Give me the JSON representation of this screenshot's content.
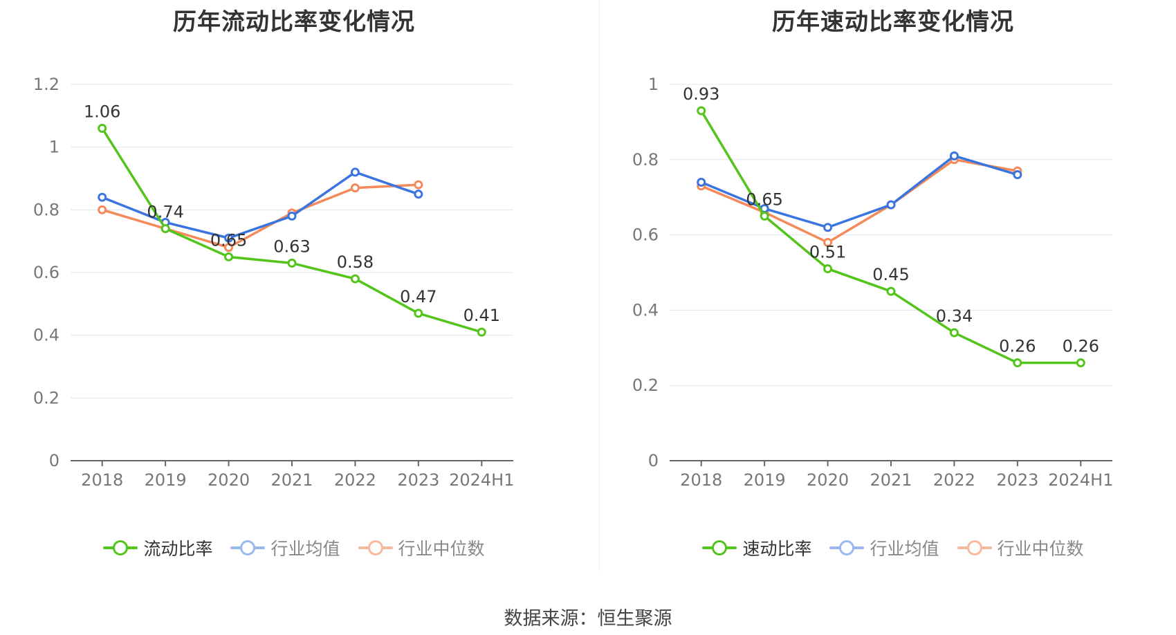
{
  "source_label": "数据来源：恒生聚源",
  "chart_data": [
    {
      "type": "line",
      "title": "历年流动比率变化情况",
      "categories": [
        "2018",
        "2019",
        "2020",
        "2021",
        "2022",
        "2023",
        "2024H1"
      ],
      "ylim": [
        0,
        1.2
      ],
      "yticks": [
        0,
        0.2,
        0.4,
        0.6,
        0.8,
        1,
        1.2
      ],
      "grid": true,
      "legend_position": "bottom",
      "series": [
        {
          "name": "流动比率",
          "color": "#52c41a",
          "values": [
            1.06,
            0.74,
            0.65,
            0.63,
            0.58,
            0.47,
            0.41
          ],
          "labels": [
            "1.06",
            "0.74",
            "0.65",
            "0.63",
            "0.58",
            "0.47",
            "0.41"
          ]
        },
        {
          "name": "行业均值",
          "color": "#3a74de",
          "values": [
            0.84,
            0.76,
            0.71,
            0.78,
            0.92,
            0.85,
            null
          ]
        },
        {
          "name": "行业中位数",
          "color": "#f48a5a",
          "values": [
            0.8,
            0.74,
            0.68,
            0.79,
            0.87,
            0.88,
            null
          ]
        }
      ]
    },
    {
      "type": "line",
      "title": "历年速动比率变化情况",
      "categories": [
        "2018",
        "2019",
        "2020",
        "2021",
        "2022",
        "2023",
        "2024H1"
      ],
      "ylim": [
        0,
        1
      ],
      "yticks": [
        0,
        0.2,
        0.4,
        0.6,
        0.8,
        1
      ],
      "grid": true,
      "legend_position": "bottom",
      "series": [
        {
          "name": "速动比率",
          "color": "#52c41a",
          "values": [
            0.93,
            0.65,
            0.51,
            0.45,
            0.34,
            0.26,
            0.26
          ],
          "labels": [
            "0.93",
            "0.65",
            "0.51",
            "0.45",
            "0.34",
            "0.26",
            "0.26"
          ]
        },
        {
          "name": "行业均值",
          "color": "#3a74de",
          "values": [
            0.74,
            0.67,
            0.62,
            0.68,
            0.81,
            0.76,
            null
          ]
        },
        {
          "name": "行业中位数",
          "color": "#f48a5a",
          "values": [
            0.73,
            0.66,
            0.58,
            0.68,
            0.8,
            0.77,
            null
          ]
        }
      ]
    }
  ]
}
